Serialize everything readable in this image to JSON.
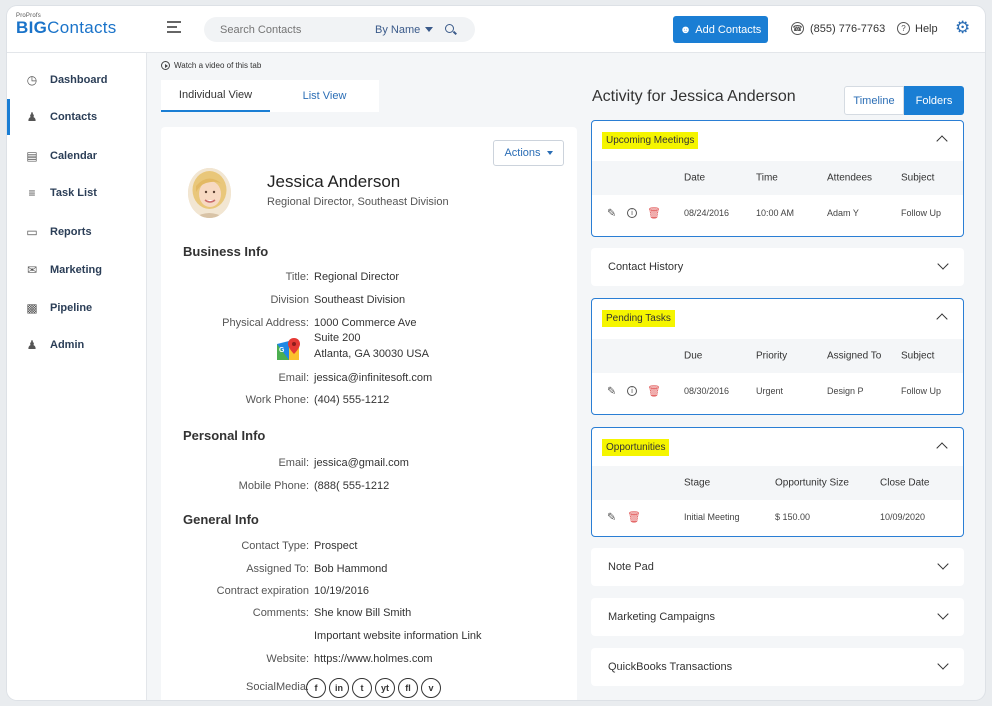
{
  "header": {
    "logo_small": "ProProfs",
    "logo_big_bold": "BIG",
    "logo_big_light": "Contacts",
    "search_placeholder": "Search Contacts",
    "search_by": "By Name",
    "add_contacts": "Add Contacts",
    "phone": "(855) 776-7763",
    "help": "Help"
  },
  "sidebar": {
    "items": [
      {
        "label": "Dashboard",
        "icon": "gauge-icon"
      },
      {
        "label": "Contacts",
        "icon": "user-icon"
      },
      {
        "label": "Calendar",
        "icon": "calendar-icon"
      },
      {
        "label": "Task List",
        "icon": "checklist-icon"
      },
      {
        "label": "Reports",
        "icon": "document-icon"
      },
      {
        "label": "Marketing",
        "icon": "mail-icon"
      },
      {
        "label": "Pipeline",
        "icon": "bar-chart-icon"
      },
      {
        "label": "Admin",
        "icon": "users-icon"
      }
    ]
  },
  "content": {
    "watch_video": "Watch a video of this tab",
    "tabs": [
      "Individual View",
      "List View"
    ],
    "actions": "Actions"
  },
  "contact": {
    "name": "Jessica Anderson",
    "role": "Regional Director, Southeast Division",
    "business_heading": "Business Info",
    "title_label": "Title:",
    "title_value": "Regional Director",
    "division_label": "Division",
    "division_value": "Southeast Division",
    "address_label": "Physical Address:",
    "address_line1": "1000 Commerce Ave",
    "address_line2": "Suite 200",
    "address_line3": "Atlanta, GA 30030 USA",
    "email_label": "Email:",
    "email_value": "jessica@infinitesoft.com",
    "workphone_label": "Work Phone:",
    "workphone_value": "(404) 555-1212",
    "personal_heading": "Personal Info",
    "personal_email_label": "Email:",
    "personal_email_value": "jessica@gmail.com",
    "mobile_label": "Mobile Phone:",
    "mobile_value": "(888( 555-1212",
    "general_heading": "General Info",
    "ctype_label": "Contact Type:",
    "ctype_value": "Prospect",
    "assigned_label": "Assigned To:",
    "assigned_value": "Bob Hammond",
    "contract_label": "Contract expiration",
    "contract_value": "10/19/2016",
    "comments_label": "Comments:",
    "comments_value": "She know Bill Smith",
    "comments_value2": "Important website information Link",
    "website_label": "Website:",
    "website_value": "https://www.holmes.com",
    "social_label": "SocialMedia:",
    "socials": [
      "f",
      "in",
      "t",
      "yt",
      "fl",
      "v"
    ]
  },
  "activity": {
    "title": "Activity for Jessica Anderson",
    "seg_timeline": "Timeline",
    "seg_folders": "Folders",
    "meetings": {
      "title": "Upcoming Meetings",
      "headers": [
        "Date",
        "Time",
        "Attendees",
        "Subject"
      ],
      "row": [
        "08/24/2016",
        "10:00 AM",
        "Adam Y",
        "Follow Up"
      ]
    },
    "history": {
      "title": "Contact History"
    },
    "tasks": {
      "title": "Pending Tasks",
      "headers": [
        "Due",
        "Priority",
        "Assigned To",
        "Subject"
      ],
      "row": [
        "08/30/2016",
        "Urgent",
        "Design P",
        "Follow Up"
      ]
    },
    "opportunities": {
      "title": "Opportunities",
      "headers": [
        "Stage",
        "Opportunity Size",
        "Close Date"
      ],
      "row": [
        "Initial Meeting",
        "$ 150.00",
        "10/09/2020"
      ]
    },
    "notepad": {
      "title": "Note Pad"
    },
    "campaigns": {
      "title": "Marketing Campaigns"
    },
    "quickbooks": {
      "title": "QuickBooks Transactions"
    }
  }
}
